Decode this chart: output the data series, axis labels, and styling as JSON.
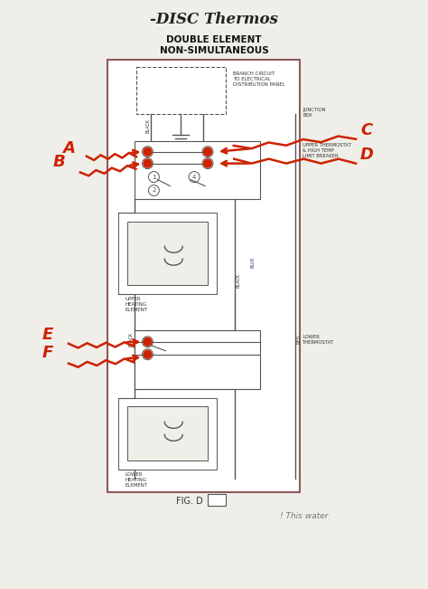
{
  "bg_color": "#f0eee8",
  "title_text": "-DISC Thermos",
  "subtitle1": "DOUBLE ELEMENT",
  "subtitle2": "NON-SIMULTANEOUS",
  "fig_label": "FIG. D",
  "watermark": "! This water",
  "branch_label": "BRANCH CIRCUIT\nTO ELECTRICAL\nDISTRIBUTION PANEL",
  "upper_element_label": "UPPER\nHEATING\nELEMENT",
  "lower_element_label": "LOWER\nHEATING\nELEMENT",
  "lower_thermo_label": "LOWER\nTHERMOSTAT",
  "upper_thermo_label": "UPPER THERMOSTAT\n& HIGH TEMP\nLIMIT BREAKER",
  "junction_label": "JUNCTION\nBOX",
  "red_color": "#cc2200",
  "line_color": "#555555",
  "border_color": "#8B5A5A",
  "title_color": "#222222",
  "white": "#ffffff",
  "light_gray": "#e8e4de"
}
